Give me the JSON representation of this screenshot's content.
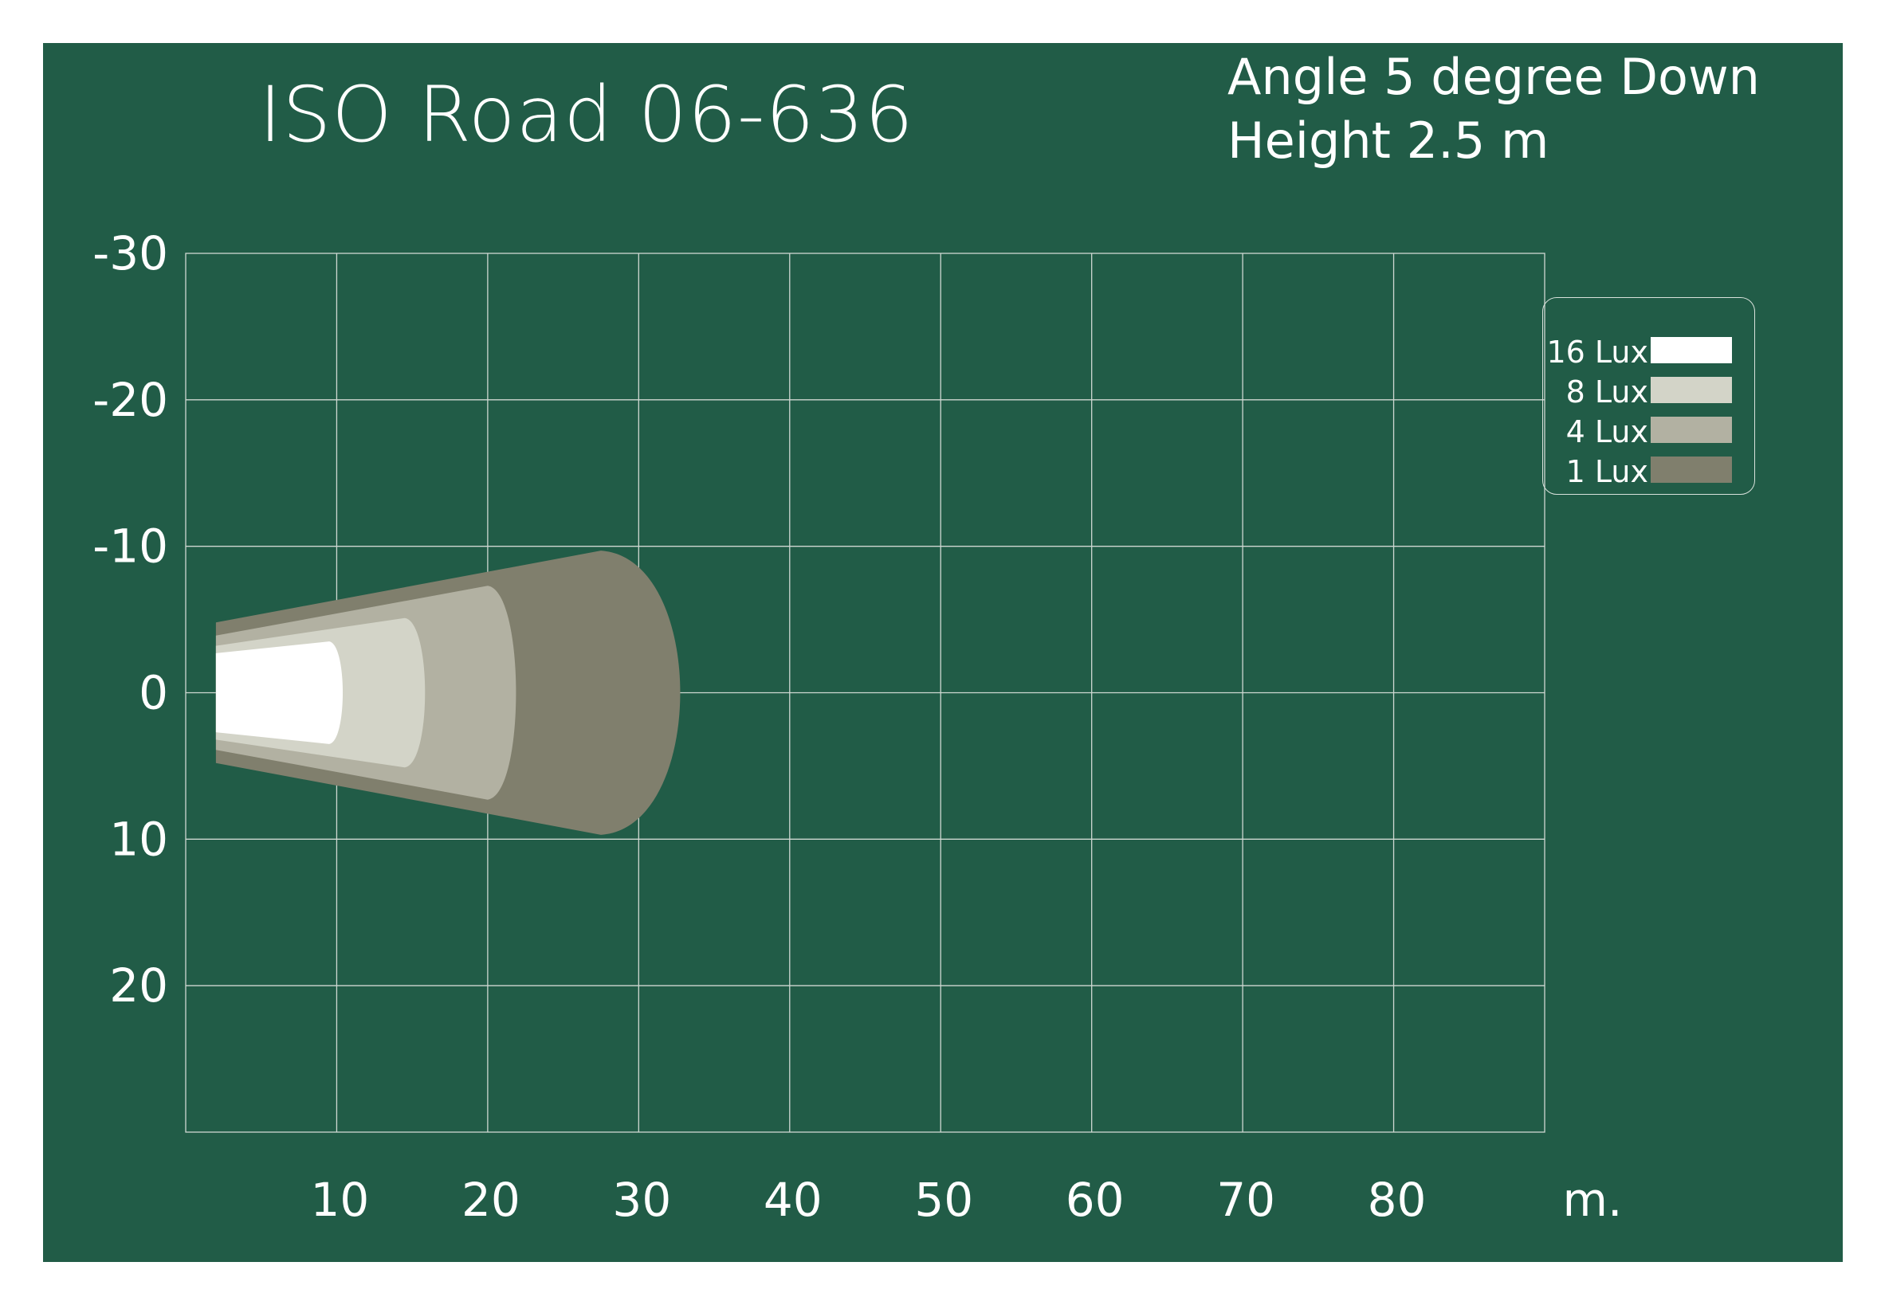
{
  "chart_data": {
    "type": "area",
    "title": "ISO Road  06-636",
    "annotations": [
      "Angle 5 degree Down",
      "Height 2.5 m"
    ],
    "x_unit_label": "m.",
    "x_ticks": [
      10,
      20,
      30,
      40,
      50,
      60,
      70,
      80
    ],
    "y_ticks": [
      -30,
      -20,
      -10,
      0,
      10,
      20
    ],
    "xlim": [
      0,
      90
    ],
    "ylim": [
      -30,
      30
    ],
    "grid": true,
    "legend_position": "right",
    "series": [
      {
        "name": "1 Lux",
        "color": "#807F6D",
        "start_x": 2,
        "start_halfwidth": 4.8,
        "end_x": 27.5,
        "end_halfwidth": 9.7,
        "max_x": 34.5
      },
      {
        "name": "4 Lux",
        "color": "#B2B1A2",
        "start_x": 2,
        "start_halfwidth": 3.9,
        "end_x": 20,
        "end_halfwidth": 7.3,
        "max_x": 22.5
      },
      {
        "name": "8 Lux",
        "color": "#D3D4C8",
        "start_x": 2,
        "start_halfwidth": 3.2,
        "end_x": 14.5,
        "end_halfwidth": 5.1,
        "max_x": 16.3
      },
      {
        "name": "16 Lux",
        "color": "#FFFFFF",
        "start_x": 2,
        "start_halfwidth": 2.7,
        "end_x": 9.5,
        "end_halfwidth": 3.5,
        "max_x": 10.7
      }
    ],
    "legend": [
      {
        "label": "16 Lux",
        "color": "#FFFFFF"
      },
      {
        "label": "8 Lux",
        "color": "#D3D4C8"
      },
      {
        "label": "4 Lux",
        "color": "#B2B1A2"
      },
      {
        "label": "1 Lux",
        "color": "#807F6D"
      }
    ]
  }
}
